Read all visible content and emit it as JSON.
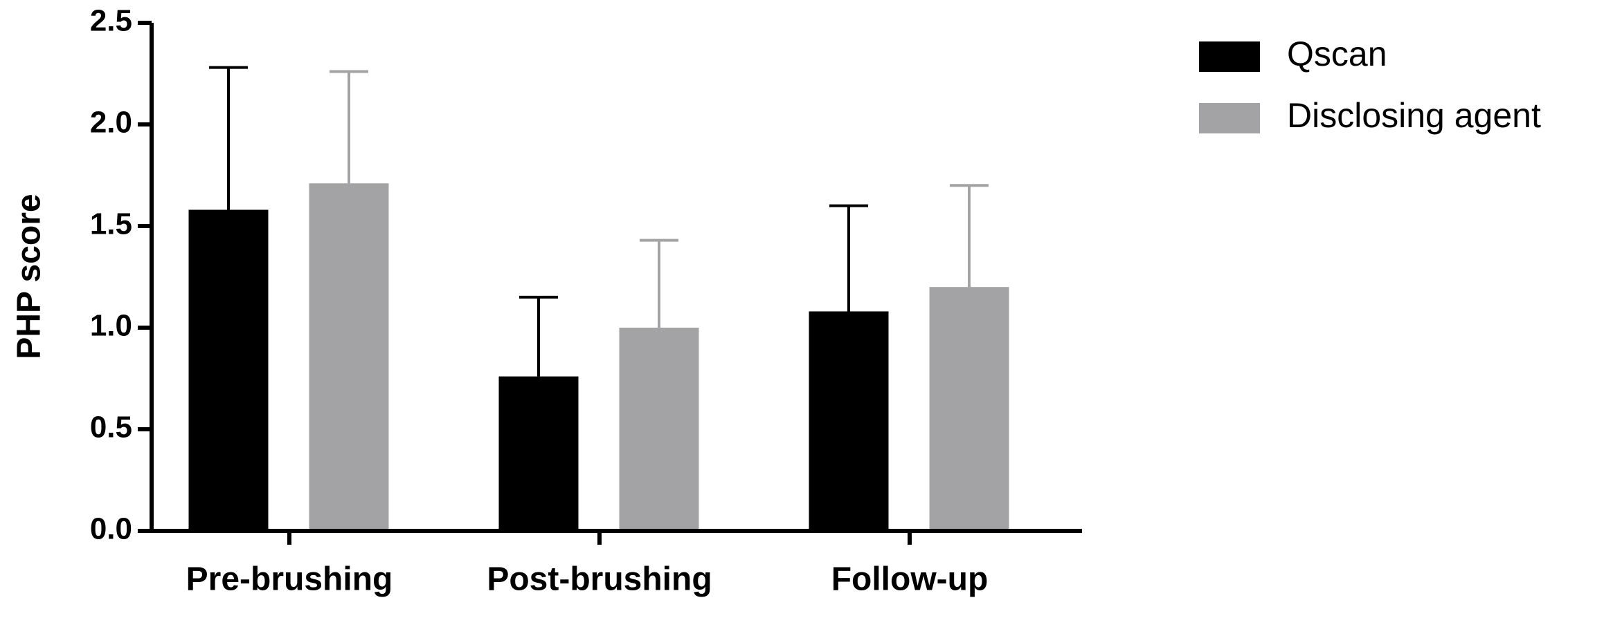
{
  "chart_data": {
    "type": "bar",
    "y_label": "PHP score",
    "categories": [
      "Pre-brushing",
      "Post-brushing",
      "Follow-up"
    ],
    "series": [
      {
        "name": "Qscan",
        "color": "#000000",
        "error_color": "#000000",
        "values": [
          1.58,
          0.76,
          1.08
        ],
        "errors": [
          0.7,
          0.39,
          0.52
        ]
      },
      {
        "name": "Disclosing agent",
        "color": "#a3a3a6",
        "error_color": "#a3a3a6",
        "values": [
          1.71,
          1.0,
          1.2
        ],
        "errors": [
          0.55,
          0.43,
          0.5
        ]
      }
    ],
    "ylim": [
      0,
      2.5
    ],
    "yticks": [
      {
        "value": 0,
        "label": "0.0"
      },
      0.5,
      {
        "value": 1,
        "label": "1.0"
      },
      1.5,
      {
        "value": 2,
        "label": "2.0"
      },
      2.5
    ]
  }
}
